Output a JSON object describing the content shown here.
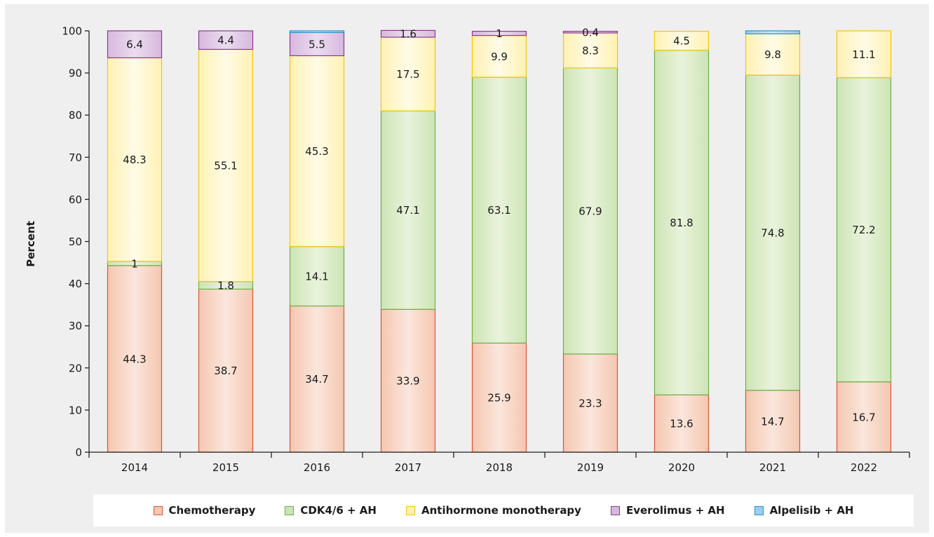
{
  "chart_data": {
    "type": "bar",
    "stacked": true,
    "title": "",
    "xlabel": "",
    "ylabel": "Percent",
    "ylim": [
      0,
      100
    ],
    "yticks": [
      0,
      10,
      20,
      30,
      40,
      50,
      60,
      70,
      80,
      90,
      100
    ],
    "grid": false,
    "legend_position": "bottom",
    "categories": [
      "2014",
      "2015",
      "2016",
      "2017",
      "2018",
      "2019",
      "2020",
      "2021",
      "2022"
    ],
    "series": [
      {
        "name": "Chemotherapy",
        "color": "#f4c7b0",
        "color_light": "#fbe6dc",
        "stroke": "#d9553a",
        "values": [
          44.3,
          38.7,
          34.7,
          33.9,
          25.9,
          23.3,
          13.6,
          14.7,
          16.7
        ],
        "labels": [
          "44.3",
          "38.7",
          "34.7",
          "33.9",
          "25.9",
          "23.3",
          "13.6",
          "14.7",
          "16.7"
        ]
      },
      {
        "name": "CDK4/6 + AH",
        "color": "#cde4b5",
        "color_light": "#e9f3dc",
        "stroke": "#6fb04a",
        "values": [
          1,
          1.8,
          14.1,
          47.1,
          63.1,
          67.9,
          81.8,
          74.8,
          72.2
        ],
        "labels": [
          "1",
          "1.8",
          "14.1",
          "47.1",
          "63.1",
          "67.9",
          "81.8",
          "74.8",
          "72.2"
        ]
      },
      {
        "name": "Antihormone monotherapy",
        "color": "#fff1b3",
        "color_light": "#fffbe6",
        "stroke": "#f2c60f",
        "values": [
          48.3,
          55.1,
          45.3,
          17.5,
          9.9,
          8.3,
          4.5,
          9.8,
          11.1
        ],
        "labels": [
          "48.3",
          "55.1",
          "45.3",
          "17.5",
          "9.9",
          "8.3",
          "4.5",
          "9.8",
          "11.1"
        ]
      },
      {
        "name": "Everolimus + AH",
        "color": "#d7b8de",
        "color_light": "#ecdcf0",
        "stroke": "#8e3a96",
        "values": [
          6.4,
          4.4,
          5.5,
          1.6,
          1,
          0.4,
          0,
          0,
          0
        ],
        "labels": [
          "6.4",
          "4.4",
          "5.5",
          "1.6",
          "1",
          "0.4",
          "",
          "",
          ""
        ]
      },
      {
        "name": "Alpelisib + AH",
        "color": "#9ccfee",
        "color_light": "#cfe8f7",
        "stroke": "#2a8fd0",
        "values": [
          0,
          0,
          0.4,
          0,
          0,
          0,
          0,
          0.7,
          0
        ],
        "labels": [
          "",
          "",
          "",
          "",
          "",
          "",
          "",
          "",
          ""
        ]
      }
    ]
  }
}
